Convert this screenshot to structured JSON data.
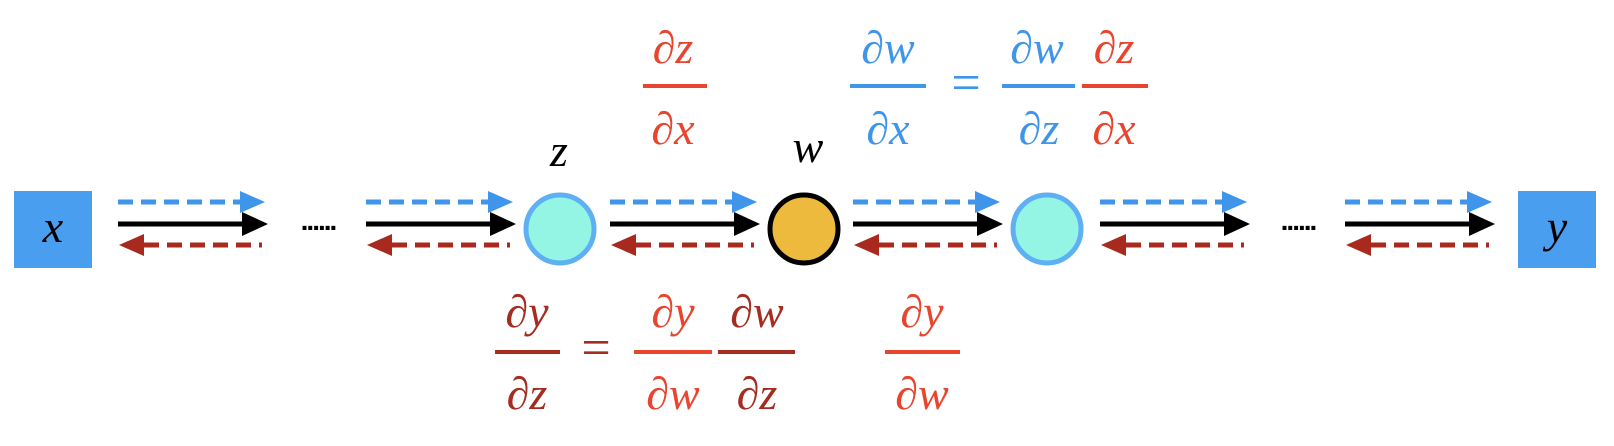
{
  "colors": {
    "forward_blue": "#3F95EA",
    "backward_darkred": "#A82A1F",
    "partial_orange": "#E8452F",
    "partial_darkred": "#A42C20",
    "partial_blue": "#3F95EA",
    "input_box": "#4A9EF0",
    "teal_node_fill": "#94F5E4",
    "teal_node_stroke": "#5EB0F2",
    "w_node_fill": "#EDBA3D",
    "black": "#000000"
  },
  "nodes": {
    "x_label": "x",
    "y_label": "y",
    "z_label": "z",
    "w_label": "w"
  },
  "ellipsis": "......",
  "equations": {
    "dz_dx": {
      "num": "∂z",
      "den": "∂x"
    },
    "dw_dx_chain": {
      "lhs": {
        "num": "∂w",
        "den": "∂x"
      },
      "eq": "=",
      "r1": {
        "num": "∂w",
        "den": "∂z"
      },
      "r2": {
        "num": "∂z",
        "den": "∂x"
      }
    },
    "dy_dz_chain": {
      "lhs": {
        "num": "∂y",
        "den": "∂z"
      },
      "eq": "=",
      "r1": {
        "num": "∂y",
        "den": "∂w"
      },
      "r2": {
        "num": "∂w",
        "den": "∂z"
      }
    },
    "dy_dw": {
      "num": "∂y",
      "den": "∂w"
    }
  }
}
